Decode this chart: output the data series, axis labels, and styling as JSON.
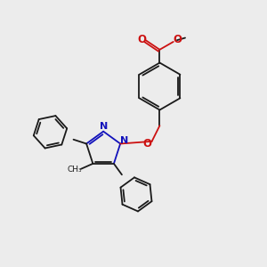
{
  "background_color": "#ececec",
  "bond_color": "#1a1a1a",
  "nitrogen_color": "#1111bb",
  "oxygen_color": "#cc1111",
  "figsize": [
    3.0,
    3.0
  ],
  "dpi": 100,
  "xlim": [
    0,
    10
  ],
  "ylim": [
    0,
    10
  ]
}
